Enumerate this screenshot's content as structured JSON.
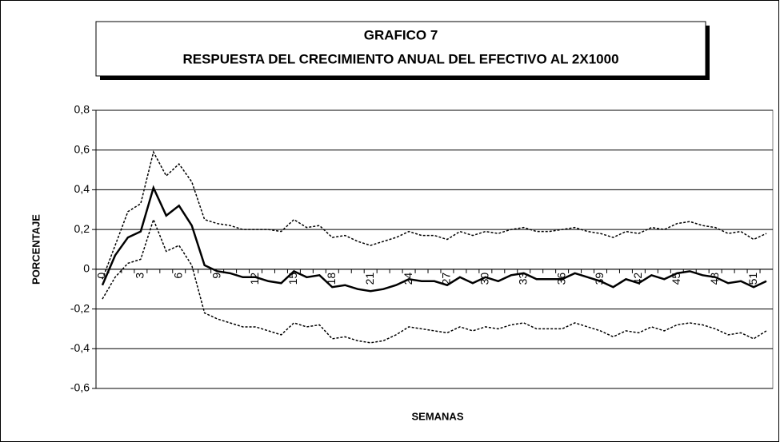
{
  "chart_data": {
    "type": "line",
    "title": "GRAFICO 7",
    "subtitle": "RESPUESTA DEL CRECIMIENTO ANUAL DEL EFECTIVO AL 2X1000",
    "x_label": "SEMANAS",
    "y_label": "PORCENTAJE",
    "categories": [
      "0",
      null,
      null,
      "3",
      null,
      null,
      "6",
      null,
      null,
      "9",
      null,
      null,
      "12",
      null,
      null,
      "15",
      null,
      null,
      "18",
      null,
      null,
      "21",
      null,
      null,
      "24",
      null,
      null,
      "27",
      null,
      null,
      "30",
      null,
      null,
      "33",
      null,
      null,
      "36",
      null,
      null,
      "39",
      null,
      null,
      "42",
      null,
      null,
      "45",
      null,
      null,
      "48",
      null,
      null,
      "51",
      null
    ],
    "series": [
      {
        "color": "#000000",
        "dash": "solid",
        "values": [
          -0.08,
          0.07,
          0.16,
          0.19,
          0.41,
          0.27,
          0.32,
          0.22,
          0.02,
          -0.01,
          -0.02,
          -0.04,
          -0.04,
          -0.06,
          -0.07,
          -0.01,
          -0.04,
          -0.03,
          -0.09,
          -0.08,
          -0.1,
          -0.11,
          -0.1,
          -0.08,
          -0.05,
          -0.06,
          -0.06,
          -0.08,
          -0.04,
          -0.07,
          -0.04,
          -0.06,
          -0.03,
          -0.02,
          -0.05,
          -0.05,
          -0.05,
          -0.02,
          -0.04,
          -0.06,
          -0.09,
          -0.05,
          -0.07,
          -0.03,
          -0.05,
          -0.02,
          -0.01,
          -0.03,
          -0.04,
          -0.07,
          -0.06,
          -0.09,
          -0.06
        ]
      },
      {
        "color": "#000000",
        "dash": "dotted",
        "values": [
          -0.05,
          0.12,
          0.29,
          0.33,
          0.59,
          0.47,
          0.53,
          0.44,
          0.25,
          0.23,
          0.22,
          0.2,
          0.2,
          0.2,
          0.19,
          0.25,
          0.21,
          0.22,
          0.16,
          0.17,
          0.14,
          0.12,
          0.14,
          0.16,
          0.19,
          0.17,
          0.17,
          0.15,
          0.19,
          0.17,
          0.19,
          0.18,
          0.2,
          0.21,
          0.19,
          0.19,
          0.2,
          0.21,
          0.19,
          0.18,
          0.16,
          0.19,
          0.18,
          0.21,
          0.2,
          0.23,
          0.24,
          0.22,
          0.21,
          0.18,
          0.19,
          0.15,
          0.18
        ]
      },
      {
        "color": "#000000",
        "dash": "dotted",
        "values": [
          -0.15,
          -0.04,
          0.03,
          0.05,
          0.25,
          0.09,
          0.12,
          0.02,
          -0.22,
          -0.25,
          -0.27,
          -0.29,
          -0.29,
          -0.31,
          -0.33,
          -0.27,
          -0.29,
          -0.28,
          -0.35,
          -0.34,
          -0.36,
          -0.37,
          -0.36,
          -0.33,
          -0.29,
          -0.3,
          -0.31,
          -0.32,
          -0.29,
          -0.31,
          -0.29,
          -0.3,
          -0.28,
          -0.27,
          -0.3,
          -0.3,
          -0.3,
          -0.27,
          -0.29,
          -0.31,
          -0.34,
          -0.31,
          -0.32,
          -0.29,
          -0.31,
          -0.28,
          -0.27,
          -0.28,
          -0.3,
          -0.33,
          -0.32,
          -0.35,
          -0.31
        ]
      }
    ],
    "ylim": [
      -0.6,
      0.8
    ],
    "yticks": [
      {
        "value": -0.6,
        "label": "-0,6"
      },
      {
        "value": -0.4,
        "label": "-0,4"
      },
      {
        "value": -0.2,
        "label": "-0,2"
      },
      0,
      {
        "value": 0.2,
        "label": "0,2"
      },
      {
        "value": 0.4,
        "label": "0,4"
      },
      {
        "value": 0.6,
        "label": "0,6"
      },
      {
        "value": 0.8,
        "label": "0,8"
      }
    ],
    "grid": true
  }
}
